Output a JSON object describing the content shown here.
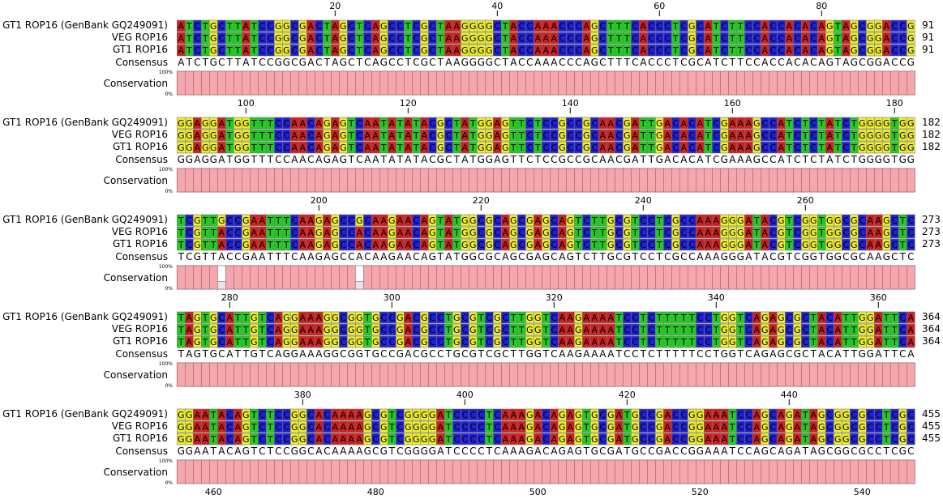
{
  "labels": {
    "consensus": "Consensus",
    "conservation": "Conservation",
    "pct_top": "100%",
    "pct_bottom": "0%"
  },
  "colors": {
    "A": "#d02020",
    "C": "#2020d6",
    "G": "#eeee30",
    "T": "#22cc22",
    "conservation_fill": "#f4a8ae",
    "conservation_stroke": "#9a5a5e"
  },
  "blocks": [
    {
      "start": 1,
      "ruler": [
        20,
        40,
        60,
        80
      ],
      "sequences": [
        {
          "name": "GT1 ROP16 (GenBank GQ249091)",
          "end": "91"
        },
        {
          "name": "VEG ROP16",
          "end": "91"
        },
        {
          "name": "GT1 ROP16",
          "end": "91"
        }
      ],
      "variants": [],
      "consensus": "ATCTGCTTATCCGGCGACTAGCTCAGCCTCGCTAAGGGGCTACCAAACCCAGCTTTCACCCTCGCATCTTCCACCACACAGTAGCGGACCG",
      "low_conservation": []
    },
    {
      "start": 92,
      "ruler": [
        100,
        120,
        140,
        160,
        180
      ],
      "sequences": [
        {
          "name": "GT1 ROP16 (GenBank GQ249091)",
          "end": "182"
        },
        {
          "name": "VEG ROP16",
          "end": "182"
        },
        {
          "name": "GT1 ROP16",
          "end": "182"
        }
      ],
      "variants": [],
      "consensus": "GGAGGATGGTTTCCAACAGAGTCAATATATACGCTATGGAGTTCTCCGCCGCAACGATTGACACATCGAAAGCCATCTCTATCTGGGGTGG",
      "low_conservation": []
    },
    {
      "start": 183,
      "ruler": [
        200,
        220,
        240,
        260
      ],
      "sequences": [
        {
          "name": "GT1 ROP16 (GenBank GQ249091)",
          "end": "273"
        },
        {
          "name": "VEG ROP16",
          "end": "273"
        },
        {
          "name": "GT1 ROP16",
          "end": "273"
        }
      ],
      "variants": [
        {
          "seq": 0,
          "col": 5,
          "base": "G"
        },
        {
          "seq": 0,
          "col": 22,
          "base": "G"
        }
      ],
      "consensus": "TCGTTACCGAATTTCAAGAGCCACAAGAACAGTATGGCGCAGCGAGCAGTCTTGCGTCCTCGCCAAAGGGATACGTCGGTGGCGCAAGCTC",
      "low_conservation": [
        5,
        22
      ]
    },
    {
      "start": 274,
      "ruler": [
        280,
        300,
        320,
        340,
        360
      ],
      "sequences": [
        {
          "name": "GT1 ROP16 (GenBank GQ249091)",
          "end": "364"
        },
        {
          "name": "VEG ROP16",
          "end": "364"
        },
        {
          "name": "GT1 ROP16",
          "end": "364"
        }
      ],
      "variants": [],
      "consensus": "TAGTGCATTGTCAGGAAAGGCGGTGCCGACGCCTGCGTCGCTTGGTCAAGAAAATCCTCTTTTTCCTGGTCAGAGCGCTACATTGGATTCA",
      "low_conservation": []
    },
    {
      "start": 365,
      "ruler": [
        380,
        400,
        420,
        440
      ],
      "sequences": [
        {
          "name": "GT1 ROP16 (GenBank GQ249091)",
          "end": "455"
        },
        {
          "name": "VEG ROP16",
          "end": "455"
        },
        {
          "name": "GT1 ROP16",
          "end": "455"
        }
      ],
      "variants": [],
      "consensus": "GGAATACAGTCTCCGGCACAAAAGCGTCGGGGATCCCCTCAAAGACAGAGTGCGATGCCGACCGGAAATCCAGCAGATAGCGGCGCCTCGC",
      "low_conservation": []
    }
  ],
  "bottom_ruler": [
    460,
    480,
    500,
    520,
    540
  ]
}
